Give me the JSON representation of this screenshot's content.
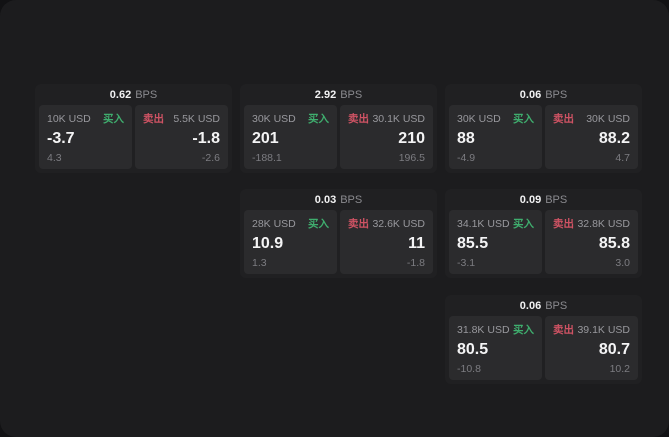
{
  "labels": {
    "bps_unit": "BPS",
    "buy": "买入",
    "sell": "卖出"
  },
  "colors": {
    "buy_accent": "#3fae6e",
    "sell_accent": "#cf5364",
    "surface": "#1c1c1e",
    "card": "#202022",
    "panel": "#2b2b2d"
  },
  "cards": [
    {
      "bps": "0.62",
      "buy": {
        "amount": "10K USD",
        "main": "-3.7",
        "sub": "4.3"
      },
      "sell": {
        "amount": "5.5K USD",
        "main": "-1.8",
        "sub": "-2.6"
      }
    },
    {
      "bps": "2.92",
      "buy": {
        "amount": "30K USD",
        "main": "201",
        "sub": "-188.1"
      },
      "sell": {
        "amount": "30.1K USD",
        "main": "210",
        "sub": "196.5"
      }
    },
    {
      "bps": "0.06",
      "buy": {
        "amount": "30K USD",
        "main": "88",
        "sub": "-4.9"
      },
      "sell": {
        "amount": "30K USD",
        "main": "88.2",
        "sub": "4.7"
      }
    },
    {
      "bps": "0.03",
      "buy": {
        "amount": "28K USD",
        "main": "10.9",
        "sub": "1.3"
      },
      "sell": {
        "amount": "32.6K USD",
        "main": "11",
        "sub": "-1.8"
      }
    },
    {
      "bps": "0.09",
      "buy": {
        "amount": "34.1K USD",
        "main": "85.5",
        "sub": "-3.1"
      },
      "sell": {
        "amount": "32.8K USD",
        "main": "85.8",
        "sub": "3.0"
      }
    },
    {
      "bps": "0.06",
      "buy": {
        "amount": "31.8K USD",
        "main": "80.5",
        "sub": "-10.8"
      },
      "sell": {
        "amount": "39.1K USD",
        "main": "80.7",
        "sub": "10.2"
      }
    }
  ]
}
